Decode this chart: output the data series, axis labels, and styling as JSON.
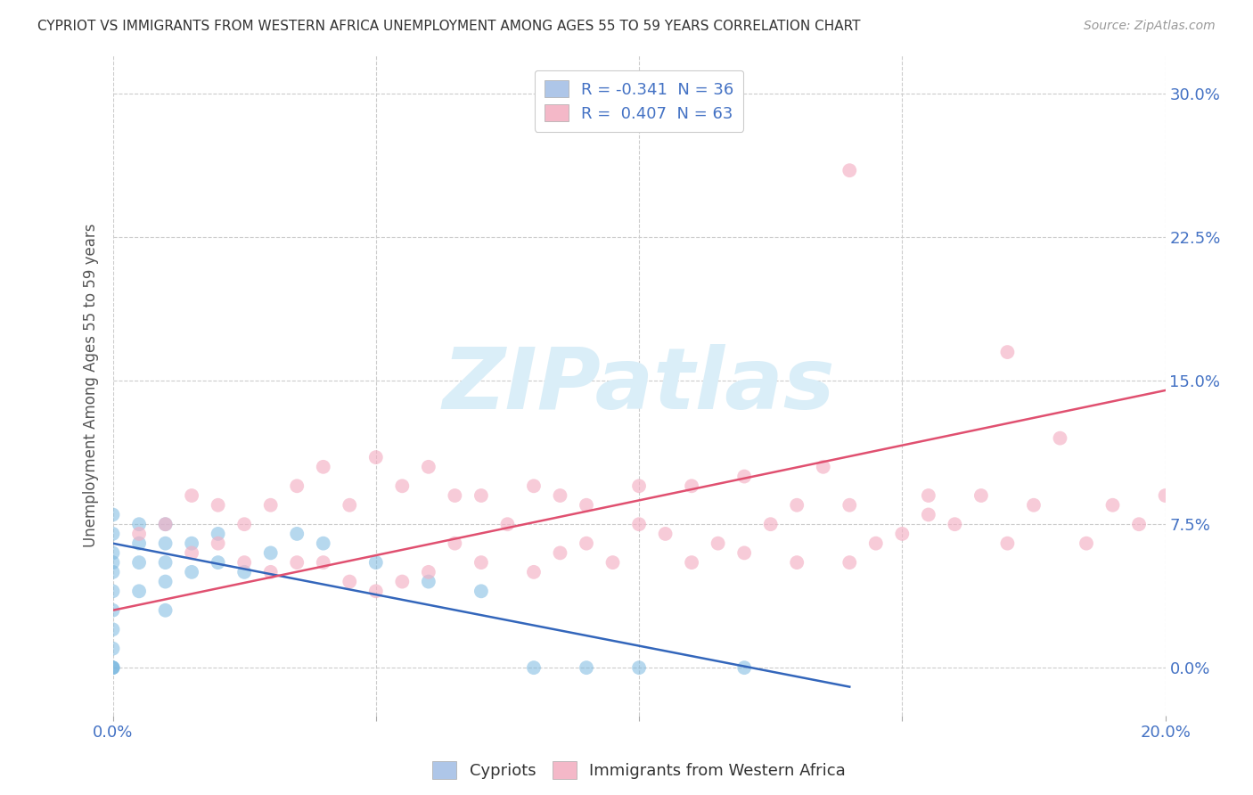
{
  "title": "CYPRIOT VS IMMIGRANTS FROM WESTERN AFRICA UNEMPLOYMENT AMONG AGES 55 TO 59 YEARS CORRELATION CHART",
  "source": "Source: ZipAtlas.com",
  "ylabel": "Unemployment Among Ages 55 to 59 years",
  "xlim": [
    0.0,
    0.2
  ],
  "ylim": [
    -0.025,
    0.32
  ],
  "yticks": [
    0.0,
    0.075,
    0.15,
    0.225,
    0.3
  ],
  "ytick_labels": [
    "0.0%",
    "7.5%",
    "15.0%",
    "22.5%",
    "30.0%"
  ],
  "xticks": [
    0.0,
    0.05,
    0.1,
    0.15,
    0.2
  ],
  "xtick_labels": [
    "0.0%",
    "",
    "",
    "",
    "20.0%"
  ],
  "legend_entries": [
    {
      "label": "R = -0.341  N = 36",
      "color": "#aec6e8"
    },
    {
      "label": "R =  0.407  N = 63",
      "color": "#f4b8c8"
    }
  ],
  "cypriot_color": "#7ab8e0",
  "western_africa_color": "#f4b0c4",
  "cypriot_line_color": "#3366bb",
  "western_africa_line_color": "#e05070",
  "background_color": "#ffffff",
  "grid_color": "#cccccc",
  "watermark_text": "ZIPatlas",
  "watermark_color": "#daeef8",
  "title_color": "#333333",
  "axis_label_color": "#555555",
  "tick_label_color": "#4472c4",
  "bottom_legend": [
    {
      "label": "Cypriots",
      "color": "#aec6e8"
    },
    {
      "label": "Immigrants from Western Africa",
      "color": "#f4b8c8"
    }
  ],
  "cypriot_scatter_x": [
    0.0,
    0.0,
    0.0,
    0.0,
    0.0,
    0.0,
    0.0,
    0.0,
    0.0,
    0.0,
    0.0,
    0.0,
    0.005,
    0.005,
    0.005,
    0.005,
    0.01,
    0.01,
    0.01,
    0.01,
    0.01,
    0.015,
    0.015,
    0.02,
    0.02,
    0.025,
    0.03,
    0.035,
    0.04,
    0.05,
    0.06,
    0.07,
    0.08,
    0.09,
    0.1,
    0.12
  ],
  "cypriot_scatter_y": [
    0.0,
    0.0,
    0.0,
    0.01,
    0.02,
    0.03,
    0.04,
    0.05,
    0.06,
    0.07,
    0.08,
    0.055,
    0.04,
    0.055,
    0.065,
    0.075,
    0.03,
    0.045,
    0.055,
    0.065,
    0.075,
    0.05,
    0.065,
    0.055,
    0.07,
    0.05,
    0.06,
    0.07,
    0.065,
    0.055,
    0.045,
    0.04,
    0.0,
    0.0,
    0.0,
    0.0
  ],
  "western_africa_scatter_x": [
    0.005,
    0.01,
    0.015,
    0.015,
    0.02,
    0.02,
    0.025,
    0.025,
    0.03,
    0.03,
    0.035,
    0.035,
    0.04,
    0.04,
    0.045,
    0.045,
    0.05,
    0.05,
    0.055,
    0.055,
    0.06,
    0.06,
    0.065,
    0.065,
    0.07,
    0.07,
    0.075,
    0.08,
    0.08,
    0.085,
    0.085,
    0.09,
    0.09,
    0.095,
    0.1,
    0.1,
    0.105,
    0.11,
    0.11,
    0.115,
    0.12,
    0.12,
    0.125,
    0.13,
    0.13,
    0.135,
    0.14,
    0.14,
    0.145,
    0.15,
    0.155,
    0.155,
    0.16,
    0.165,
    0.17,
    0.175,
    0.18,
    0.185,
    0.19,
    0.195,
    0.2,
    0.14,
    0.17
  ],
  "western_africa_scatter_y": [
    0.07,
    0.075,
    0.06,
    0.09,
    0.065,
    0.085,
    0.055,
    0.075,
    0.05,
    0.085,
    0.055,
    0.095,
    0.055,
    0.105,
    0.045,
    0.085,
    0.04,
    0.11,
    0.045,
    0.095,
    0.05,
    0.105,
    0.065,
    0.09,
    0.055,
    0.09,
    0.075,
    0.05,
    0.095,
    0.06,
    0.09,
    0.065,
    0.085,
    0.055,
    0.075,
    0.095,
    0.07,
    0.055,
    0.095,
    0.065,
    0.06,
    0.1,
    0.075,
    0.085,
    0.055,
    0.105,
    0.055,
    0.085,
    0.065,
    0.07,
    0.08,
    0.09,
    0.075,
    0.09,
    0.065,
    0.085,
    0.12,
    0.065,
    0.085,
    0.075,
    0.09,
    0.26,
    0.165
  ],
  "cypriot_line_x": [
    0.0,
    0.14
  ],
  "cypriot_line_y": [
    0.065,
    -0.01
  ],
  "western_africa_line_x": [
    0.0,
    0.2
  ],
  "western_africa_line_y": [
    0.03,
    0.145
  ]
}
